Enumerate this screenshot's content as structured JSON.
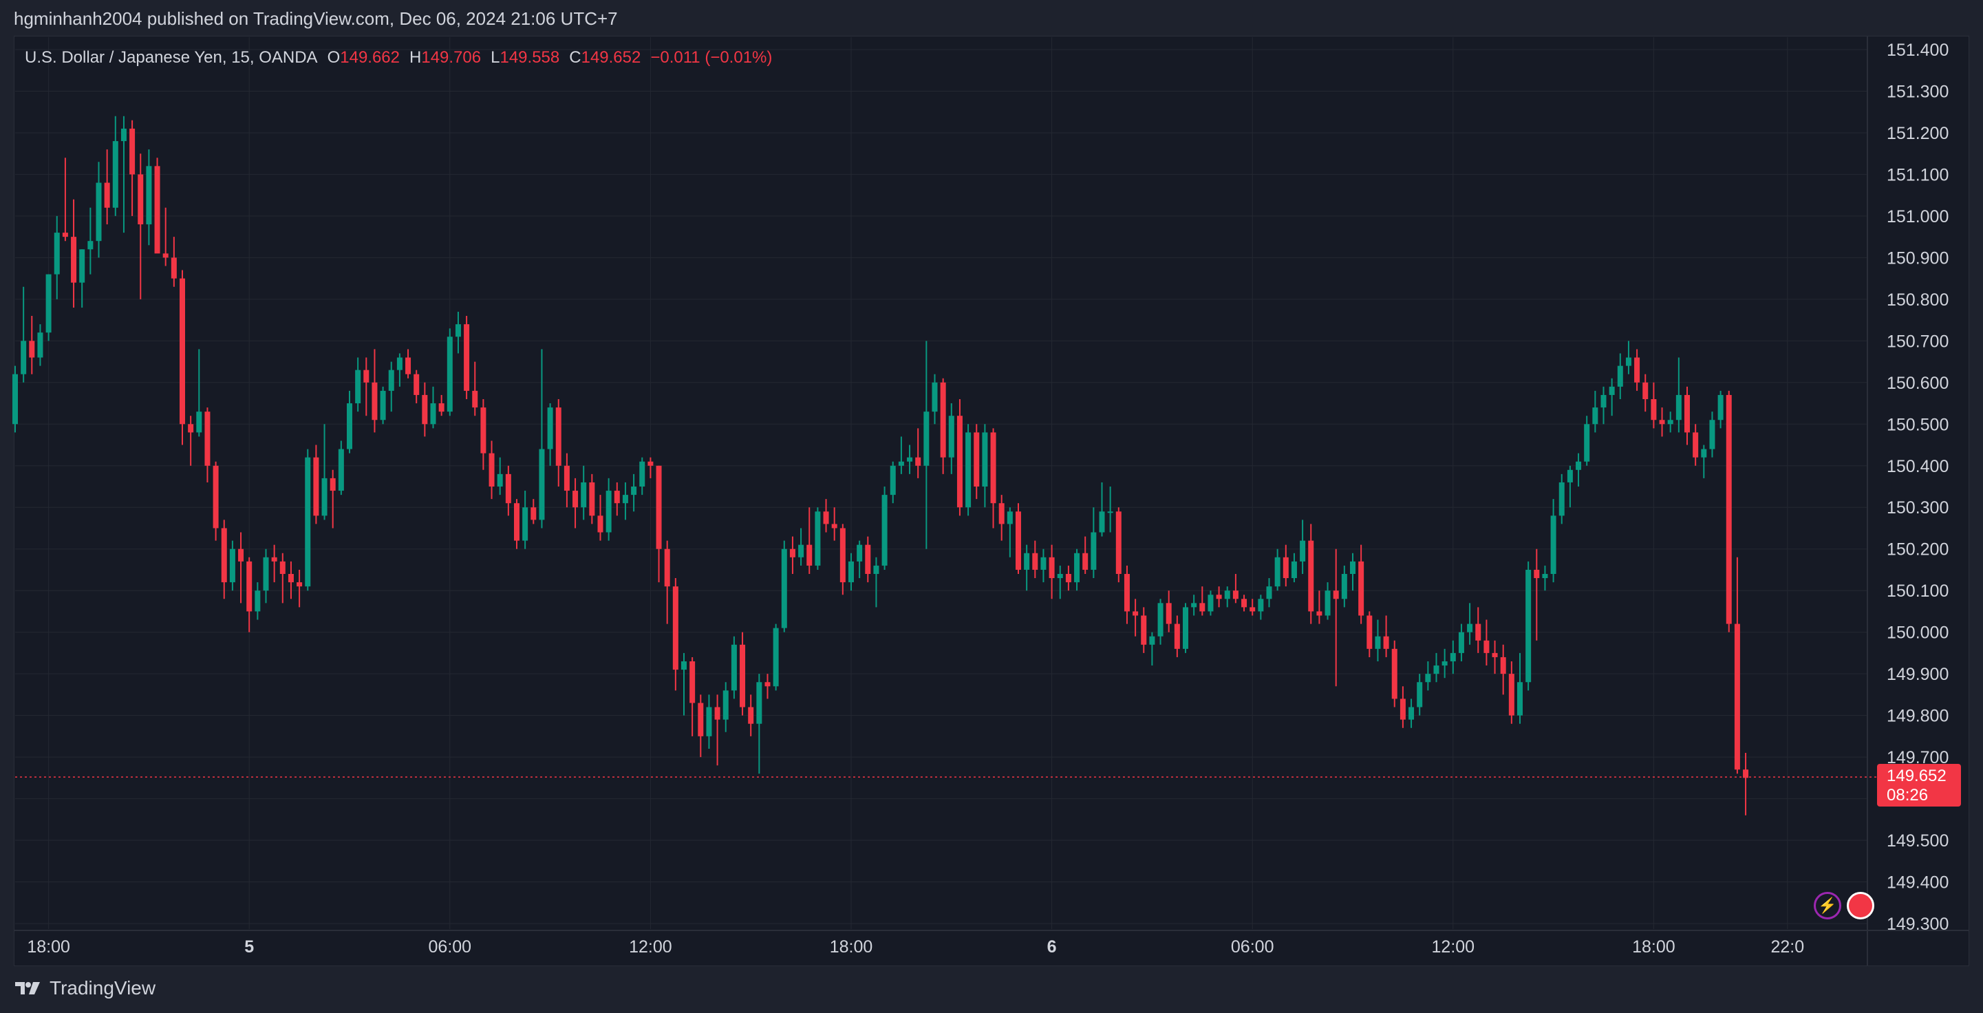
{
  "header": {
    "publisher_text": "hgminhanh2004 published on TradingView.com, Dec 06, 2024 21:06 UTC+7"
  },
  "legend": {
    "symbol": "U.S. Dollar / Japanese Yen, 15, OANDA",
    "o_label": "O",
    "o_value": "149.662",
    "h_label": "H",
    "h_value": "149.706",
    "l_label": "L",
    "l_value": "149.558",
    "c_label": "C",
    "c_value": "149.652",
    "change": "−0.011 (−0.01%)"
  },
  "last_price": {
    "price": "149.652",
    "countdown": "08:26"
  },
  "footer": {
    "brand": "TradingView"
  },
  "colors": {
    "up": "#089981",
    "down": "#f23645",
    "background": "#161a25",
    "grid": "#242832",
    "text": "#d1d4dc"
  },
  "icons": [
    "flash-icon",
    "us-flag-icon",
    "tradingview-logo-icon"
  ],
  "chart_data": {
    "type": "candlestick",
    "symbol": "USDJPY",
    "interval": "15",
    "ylim": [
      149.3,
      151.4
    ],
    "y_ticks": [
      "151.400",
      "151.300",
      "151.200",
      "151.100",
      "151.000",
      "150.900",
      "150.800",
      "150.700",
      "150.600",
      "150.500",
      "150.400",
      "150.300",
      "150.200",
      "150.100",
      "150.000",
      "149.900",
      "149.800",
      "149.700",
      "149.500",
      "149.400",
      "149.300"
    ],
    "x_ticks": [
      {
        "label": "18:00",
        "i": 4,
        "bold": false
      },
      {
        "label": "5",
        "i": 28,
        "bold": true
      },
      {
        "label": "06:00",
        "i": 52,
        "bold": false
      },
      {
        "label": "12:00",
        "i": 76,
        "bold": false
      },
      {
        "label": "18:00",
        "i": 100,
        "bold": false
      },
      {
        "label": "6",
        "i": 124,
        "bold": true
      },
      {
        "label": "06:00",
        "i": 148,
        "bold": false
      },
      {
        "label": "12:00",
        "i": 172,
        "bold": false
      },
      {
        "label": "18:00",
        "i": 196,
        "bold": false
      },
      {
        "label": "22:0",
        "i": 212,
        "bold": false
      }
    ],
    "current_price": 149.652,
    "ohlc": [
      [
        150.5,
        150.64,
        150.48,
        150.62
      ],
      [
        150.62,
        150.83,
        150.6,
        150.7
      ],
      [
        150.7,
        150.76,
        150.62,
        150.66
      ],
      [
        150.66,
        150.74,
        150.64,
        150.72
      ],
      [
        150.72,
        150.86,
        150.7,
        150.86
      ],
      [
        150.86,
        151.0,
        150.8,
        150.96
      ],
      [
        150.96,
        151.14,
        150.94,
        150.95
      ],
      [
        150.95,
        151.04,
        150.78,
        150.84
      ],
      [
        150.84,
        150.92,
        150.78,
        150.92
      ],
      [
        150.92,
        151.02,
        150.86,
        150.94
      ],
      [
        150.94,
        151.13,
        150.9,
        151.08
      ],
      [
        151.08,
        151.16,
        150.98,
        151.02
      ],
      [
        151.02,
        151.24,
        151.0,
        151.18
      ],
      [
        151.18,
        151.24,
        150.96,
        151.21
      ],
      [
        151.21,
        151.23,
        151.0,
        151.1
      ],
      [
        151.1,
        151.15,
        150.8,
        150.98
      ],
      [
        150.98,
        151.16,
        150.93,
        151.12
      ],
      [
        151.12,
        151.14,
        150.92,
        150.91
      ],
      [
        150.91,
        151.02,
        150.88,
        150.9
      ],
      [
        150.9,
        150.95,
        150.83,
        150.85
      ],
      [
        150.85,
        150.87,
        150.45,
        150.5
      ],
      [
        150.5,
        150.52,
        150.4,
        150.48
      ],
      [
        150.48,
        150.68,
        150.47,
        150.53
      ],
      [
        150.53,
        150.54,
        150.36,
        150.4
      ],
      [
        150.4,
        150.41,
        150.22,
        150.25
      ],
      [
        150.25,
        150.27,
        150.08,
        150.12
      ],
      [
        150.12,
        150.22,
        150.1,
        150.2
      ],
      [
        150.2,
        150.24,
        150.07,
        150.17
      ],
      [
        150.17,
        150.18,
        150.0,
        150.05
      ],
      [
        150.05,
        150.12,
        150.03,
        150.1
      ],
      [
        150.1,
        150.2,
        150.07,
        150.18
      ],
      [
        150.18,
        150.21,
        150.12,
        150.17
      ],
      [
        150.17,
        150.19,
        150.07,
        150.14
      ],
      [
        150.14,
        150.17,
        150.08,
        150.12
      ],
      [
        150.12,
        150.15,
        150.06,
        150.11
      ],
      [
        150.11,
        150.44,
        150.1,
        150.42
      ],
      [
        150.42,
        150.45,
        150.26,
        150.28
      ],
      [
        150.28,
        150.5,
        150.27,
        150.37
      ],
      [
        150.37,
        150.39,
        150.25,
        150.34
      ],
      [
        150.34,
        150.46,
        150.33,
        150.44
      ],
      [
        150.44,
        150.58,
        150.43,
        150.55
      ],
      [
        150.55,
        150.66,
        150.53,
        150.63
      ],
      [
        150.63,
        150.66,
        150.52,
        150.6
      ],
      [
        150.6,
        150.68,
        150.48,
        150.51
      ],
      [
        150.51,
        150.59,
        150.5,
        150.58
      ],
      [
        150.58,
        150.65,
        150.53,
        150.63
      ],
      [
        150.63,
        150.67,
        150.59,
        150.66
      ],
      [
        150.66,
        150.68,
        150.61,
        150.62
      ],
      [
        150.62,
        150.63,
        150.55,
        150.57
      ],
      [
        150.57,
        150.6,
        150.47,
        150.5
      ],
      [
        150.5,
        150.59,
        150.49,
        150.55
      ],
      [
        150.55,
        150.57,
        150.52,
        150.53
      ],
      [
        150.53,
        150.73,
        150.52,
        150.71
      ],
      [
        150.71,
        150.77,
        150.67,
        150.74
      ],
      [
        150.74,
        150.76,
        150.56,
        150.58
      ],
      [
        150.58,
        150.65,
        150.52,
        150.54
      ],
      [
        150.54,
        150.56,
        150.39,
        150.43
      ],
      [
        150.43,
        150.46,
        150.32,
        150.35
      ],
      [
        150.35,
        150.42,
        150.33,
        150.38
      ],
      [
        150.38,
        150.4,
        150.28,
        150.31
      ],
      [
        150.31,
        150.32,
        150.2,
        150.22
      ],
      [
        150.22,
        150.34,
        150.2,
        150.3
      ],
      [
        150.3,
        150.32,
        150.26,
        150.27
      ],
      [
        150.27,
        150.68,
        150.25,
        150.44
      ],
      [
        150.44,
        150.55,
        150.4,
        150.54
      ],
      [
        150.54,
        150.56,
        150.35,
        150.4
      ],
      [
        150.4,
        150.43,
        150.3,
        150.34
      ],
      [
        150.34,
        150.37,
        150.25,
        150.3
      ],
      [
        150.3,
        150.4,
        150.27,
        150.36
      ],
      [
        150.36,
        150.38,
        150.26,
        150.28
      ],
      [
        150.28,
        150.33,
        150.22,
        150.24
      ],
      [
        150.24,
        150.37,
        150.22,
        150.34
      ],
      [
        150.34,
        150.36,
        150.28,
        150.31
      ],
      [
        150.31,
        150.36,
        150.27,
        150.33
      ],
      [
        150.33,
        150.38,
        150.29,
        150.35
      ],
      [
        150.35,
        150.42,
        150.33,
        150.41
      ],
      [
        150.41,
        150.42,
        150.37,
        150.4
      ],
      [
        150.4,
        150.4,
        150.12,
        150.2
      ],
      [
        150.2,
        150.22,
        150.02,
        150.11
      ],
      [
        150.11,
        150.13,
        149.86,
        149.91
      ],
      [
        149.91,
        149.95,
        149.8,
        149.93
      ],
      [
        149.93,
        149.94,
        149.75,
        149.83
      ],
      [
        149.83,
        149.85,
        149.7,
        149.75
      ],
      [
        149.75,
        149.85,
        149.72,
        149.82
      ],
      [
        149.82,
        149.85,
        149.68,
        149.79
      ],
      [
        149.79,
        149.88,
        149.76,
        149.86
      ],
      [
        149.86,
        149.99,
        149.84,
        149.97
      ],
      [
        149.97,
        150.0,
        149.8,
        149.82
      ],
      [
        149.82,
        149.85,
        149.75,
        149.78
      ],
      [
        149.78,
        149.9,
        149.66,
        149.88
      ],
      [
        149.88,
        149.9,
        149.84,
        149.87
      ],
      [
        149.87,
        150.02,
        149.86,
        150.01
      ],
      [
        150.01,
        150.22,
        150.0,
        150.2
      ],
      [
        150.2,
        150.23,
        150.14,
        150.18
      ],
      [
        150.18,
        150.25,
        150.16,
        150.21
      ],
      [
        150.21,
        150.3,
        150.14,
        150.16
      ],
      [
        150.16,
        150.3,
        150.15,
        150.29
      ],
      [
        150.29,
        150.32,
        150.24,
        150.26
      ],
      [
        150.26,
        150.3,
        150.22,
        150.25
      ],
      [
        150.25,
        150.26,
        150.09,
        150.12
      ],
      [
        150.12,
        150.19,
        150.1,
        150.17
      ],
      [
        150.17,
        150.22,
        150.13,
        150.21
      ],
      [
        150.21,
        150.23,
        150.12,
        150.14
      ],
      [
        150.14,
        150.18,
        150.06,
        150.16
      ],
      [
        150.16,
        150.35,
        150.15,
        150.33
      ],
      [
        150.33,
        150.41,
        150.31,
        150.4
      ],
      [
        150.4,
        150.47,
        150.38,
        150.41
      ],
      [
        150.41,
        150.45,
        150.38,
        150.42
      ],
      [
        150.42,
        150.49,
        150.37,
        150.4
      ],
      [
        150.4,
        150.7,
        150.2,
        150.53
      ],
      [
        150.53,
        150.62,
        150.5,
        150.6
      ],
      [
        150.6,
        150.61,
        150.38,
        150.42
      ],
      [
        150.42,
        150.55,
        150.38,
        150.52
      ],
      [
        150.52,
        150.56,
        150.28,
        150.3
      ],
      [
        150.3,
        150.5,
        150.28,
        150.48
      ],
      [
        150.48,
        150.5,
        150.32,
        150.35
      ],
      [
        150.35,
        150.5,
        150.3,
        150.48
      ],
      [
        150.48,
        150.49,
        150.25,
        150.31
      ],
      [
        150.31,
        150.33,
        150.22,
        150.26
      ],
      [
        150.26,
        150.3,
        150.18,
        150.29
      ],
      [
        150.29,
        150.31,
        150.14,
        150.15
      ],
      [
        150.15,
        150.21,
        150.1,
        150.19
      ],
      [
        150.19,
        150.22,
        150.13,
        150.15
      ],
      [
        150.15,
        150.2,
        150.12,
        150.18
      ],
      [
        150.18,
        150.21,
        150.08,
        150.13
      ],
      [
        150.13,
        150.16,
        150.08,
        150.14
      ],
      [
        150.14,
        150.16,
        150.1,
        150.12
      ],
      [
        150.12,
        150.2,
        150.1,
        150.19
      ],
      [
        150.19,
        150.23,
        150.14,
        150.15
      ],
      [
        150.15,
        150.3,
        150.13,
        150.24
      ],
      [
        150.24,
        150.36,
        150.23,
        150.29
      ],
      [
        150.29,
        150.35,
        150.24,
        150.29
      ],
      [
        150.29,
        150.3,
        150.12,
        150.14
      ],
      [
        150.14,
        150.16,
        150.02,
        150.05
      ],
      [
        150.05,
        150.08,
        149.99,
        150.04
      ],
      [
        150.04,
        150.06,
        149.95,
        149.97
      ],
      [
        149.97,
        150.0,
        149.92,
        149.99
      ],
      [
        149.99,
        150.08,
        149.97,
        150.07
      ],
      [
        150.07,
        150.1,
        150.0,
        150.02
      ],
      [
        150.02,
        150.04,
        149.94,
        149.96
      ],
      [
        149.96,
        150.07,
        149.95,
        150.06
      ],
      [
        150.06,
        150.09,
        150.04,
        150.07
      ],
      [
        150.07,
        150.11,
        150.04,
        150.05
      ],
      [
        150.05,
        150.1,
        150.04,
        150.09
      ],
      [
        150.09,
        150.11,
        150.06,
        150.08
      ],
      [
        150.08,
        150.11,
        150.06,
        150.1
      ],
      [
        150.1,
        150.14,
        150.07,
        150.08
      ],
      [
        150.08,
        150.09,
        150.05,
        150.06
      ],
      [
        150.06,
        150.08,
        150.04,
        150.05
      ],
      [
        150.05,
        150.09,
        150.03,
        150.08
      ],
      [
        150.08,
        150.13,
        150.06,
        150.11
      ],
      [
        150.11,
        150.2,
        150.1,
        150.18
      ],
      [
        150.18,
        150.21,
        150.11,
        150.13
      ],
      [
        150.13,
        150.19,
        150.12,
        150.17
      ],
      [
        150.17,
        150.27,
        150.14,
        150.22
      ],
      [
        150.22,
        150.26,
        150.02,
        150.05
      ],
      [
        150.05,
        150.1,
        150.02,
        150.04
      ],
      [
        150.04,
        150.12,
        150.03,
        150.1
      ],
      [
        150.1,
        150.2,
        149.87,
        150.08
      ],
      [
        150.08,
        150.16,
        150.06,
        150.14
      ],
      [
        150.14,
        150.19,
        150.1,
        150.17
      ],
      [
        150.17,
        150.21,
        150.02,
        150.04
      ],
      [
        150.04,
        150.05,
        149.94,
        149.96
      ],
      [
        149.96,
        150.03,
        149.93,
        149.99
      ],
      [
        149.99,
        150.04,
        149.94,
        149.96
      ],
      [
        149.96,
        149.98,
        149.82,
        149.84
      ],
      [
        149.84,
        149.87,
        149.77,
        149.79
      ],
      [
        149.79,
        149.84,
        149.77,
        149.82
      ],
      [
        149.82,
        149.9,
        149.8,
        149.88
      ],
      [
        149.88,
        149.93,
        149.86,
        149.9
      ],
      [
        149.9,
        149.95,
        149.88,
        149.92
      ],
      [
        149.92,
        149.96,
        149.89,
        149.93
      ],
      [
        149.93,
        149.98,
        149.9,
        149.95
      ],
      [
        149.95,
        150.02,
        149.93,
        150.0
      ],
      [
        150.0,
        150.07,
        149.97,
        150.02
      ],
      [
        150.02,
        150.06,
        149.95,
        149.98
      ],
      [
        149.98,
        150.03,
        149.92,
        149.95
      ],
      [
        149.95,
        149.98,
        149.9,
        149.94
      ],
      [
        149.94,
        149.97,
        149.85,
        149.9
      ],
      [
        149.9,
        149.93,
        149.78,
        149.8
      ],
      [
        149.8,
        149.95,
        149.78,
        149.88
      ],
      [
        149.88,
        150.17,
        149.86,
        150.15
      ],
      [
        150.15,
        150.2,
        149.98,
        150.13
      ],
      [
        150.13,
        150.16,
        150.1,
        150.14
      ],
      [
        150.14,
        150.32,
        150.12,
        150.28
      ],
      [
        150.28,
        150.38,
        150.26,
        150.36
      ],
      [
        150.36,
        150.4,
        150.3,
        150.39
      ],
      [
        150.39,
        150.43,
        150.35,
        150.41
      ],
      [
        150.41,
        150.52,
        150.4,
        150.5
      ],
      [
        150.5,
        150.58,
        150.48,
        150.54
      ],
      [
        150.54,
        150.59,
        150.5,
        150.57
      ],
      [
        150.57,
        150.61,
        150.52,
        150.59
      ],
      [
        150.59,
        150.67,
        150.56,
        150.64
      ],
      [
        150.64,
        150.7,
        150.62,
        150.66
      ],
      [
        150.66,
        150.68,
        150.58,
        150.6
      ],
      [
        150.6,
        150.62,
        150.53,
        150.56
      ],
      [
        150.56,
        150.6,
        150.49,
        150.51
      ],
      [
        150.51,
        150.54,
        150.47,
        150.5
      ],
      [
        150.5,
        150.53,
        150.48,
        150.51
      ],
      [
        150.51,
        150.66,
        150.48,
        150.57
      ],
      [
        150.57,
        150.59,
        150.45,
        150.48
      ],
      [
        150.48,
        150.5,
        150.4,
        150.42
      ],
      [
        150.42,
        150.45,
        150.37,
        150.44
      ],
      [
        150.44,
        150.53,
        150.42,
        150.51
      ],
      [
        150.51,
        150.58,
        150.49,
        150.57
      ],
      [
        150.57,
        150.58,
        150.0,
        150.02
      ],
      [
        150.02,
        150.18,
        149.66,
        149.67
      ],
      [
        149.67,
        149.71,
        149.56,
        149.65
      ]
    ]
  }
}
